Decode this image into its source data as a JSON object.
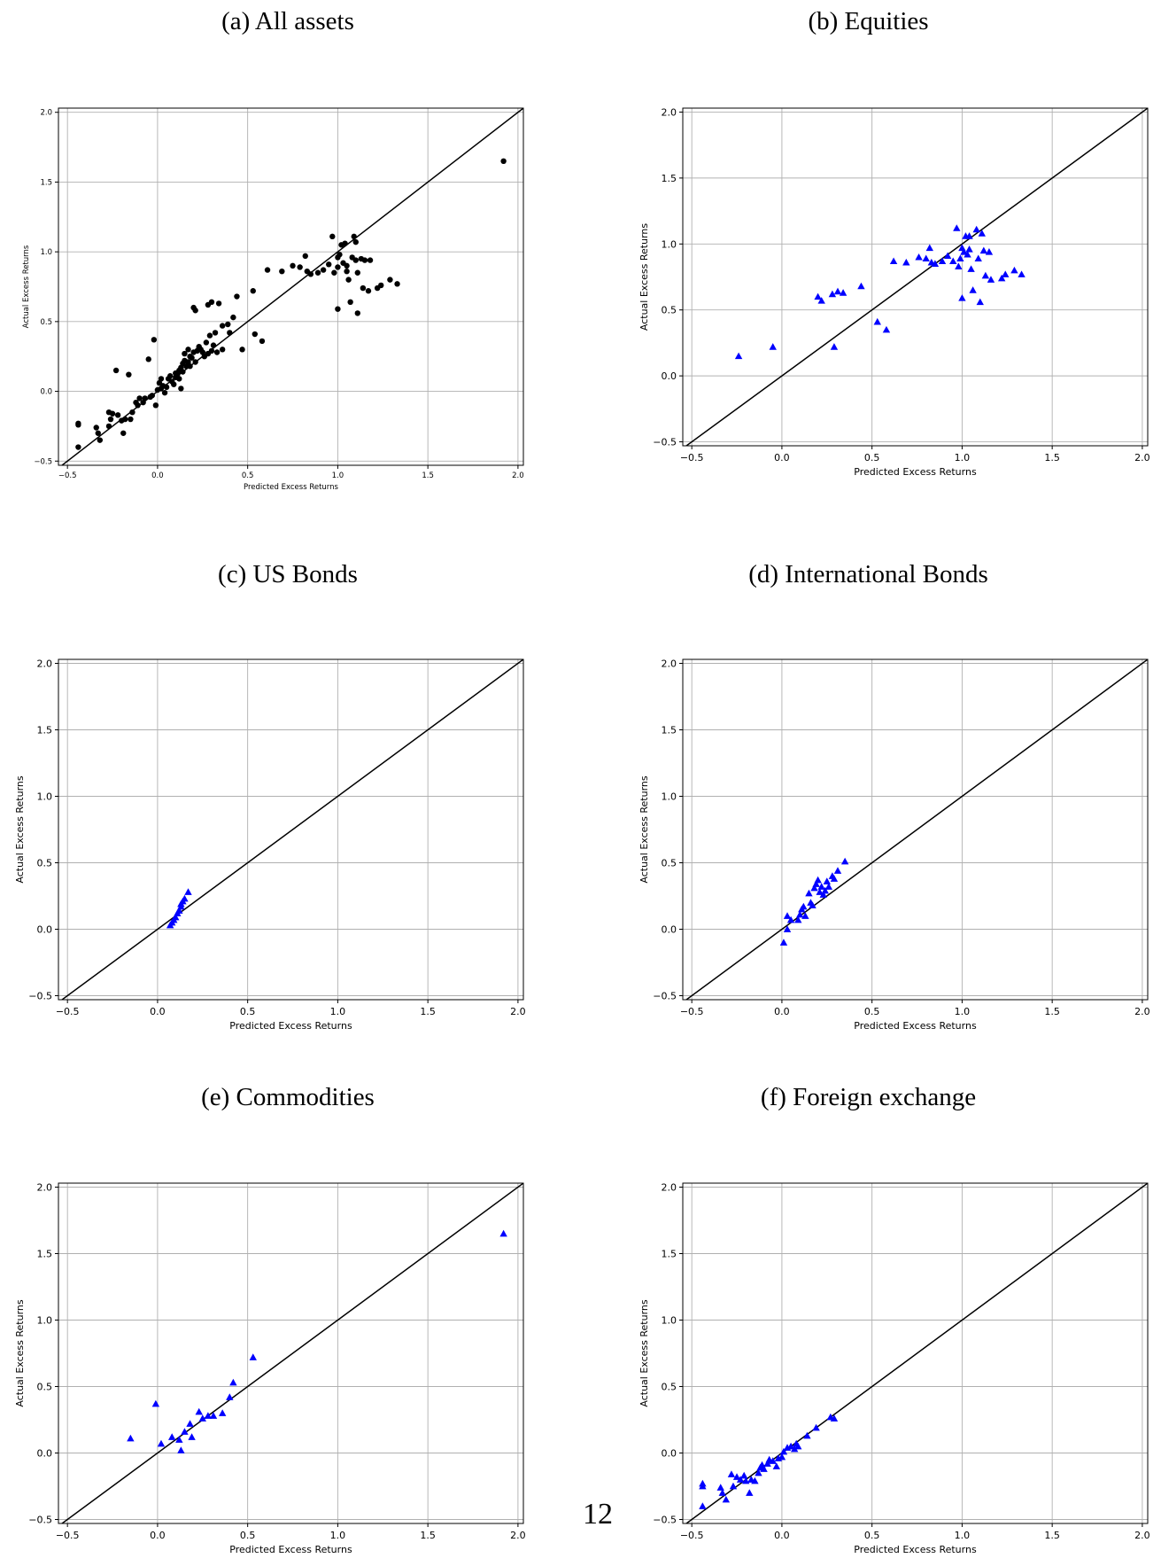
{
  "page": {
    "page_number": "12"
  },
  "colors": {
    "black_series": "#000000",
    "blue_series": "#0000ff",
    "grid": "#b0b0b0",
    "diagonal": "#000000"
  },
  "chart_data": [
    {
      "id": "a",
      "type": "scatter",
      "title": "(a) All assets",
      "marker": "circle",
      "color": "#000000",
      "xlabel": "Predicted Excess Returns",
      "ylabel": "Actual Excess Returns",
      "xlim": [
        -0.55,
        2.03
      ],
      "ylim": [
        -0.53,
        2.03
      ],
      "xticks": [
        "−0.5",
        "0.0",
        "0.5",
        "1.0",
        "1.5",
        "2.0"
      ],
      "xtick_values": [
        -0.5,
        0,
        0.5,
        1,
        1.5,
        2
      ],
      "yticks": [
        "−0.5",
        "0.0",
        "0.5",
        "1.0",
        "1.5",
        "2.0"
      ],
      "ytick_values": [
        -0.5,
        0,
        0.5,
        1,
        1.5,
        2
      ],
      "grid": true,
      "reference_line": "y = x",
      "points": [
        [
          -0.44,
          -0.23
        ],
        [
          -0.44,
          -0.24
        ],
        [
          -0.44,
          -0.4
        ],
        [
          -0.34,
          -0.26
        ],
        [
          -0.33,
          -0.3
        ],
        [
          -0.32,
          -0.35
        ],
        [
          -0.27,
          -0.15
        ],
        [
          -0.27,
          -0.25
        ],
        [
          -0.26,
          -0.2
        ],
        [
          -0.25,
          -0.16
        ],
        [
          -0.23,
          0.15
        ],
        [
          -0.22,
          -0.17
        ],
        [
          -0.2,
          -0.21
        ],
        [
          -0.19,
          -0.3
        ],
        [
          -0.18,
          -0.2
        ],
        [
          -0.16,
          0.12
        ],
        [
          -0.15,
          -0.2
        ],
        [
          -0.14,
          -0.15
        ],
        [
          -0.12,
          -0.08
        ],
        [
          -0.11,
          -0.1
        ],
        [
          -0.1,
          -0.05
        ],
        [
          -0.08,
          -0.08
        ],
        [
          -0.07,
          -0.05
        ],
        [
          -0.05,
          0.23
        ],
        [
          -0.04,
          -0.04
        ],
        [
          -0.03,
          -0.03
        ],
        [
          -0.02,
          0.37
        ],
        [
          -0.01,
          -0.1
        ],
        [
          0.0,
          0.01
        ],
        [
          0.01,
          0.06
        ],
        [
          0.02,
          0.02
        ],
        [
          0.02,
          0.09
        ],
        [
          0.03,
          0.04
        ],
        [
          0.04,
          -0.01
        ],
        [
          0.05,
          0.03
        ],
        [
          0.06,
          0.09
        ],
        [
          0.07,
          0.11
        ],
        [
          0.08,
          0.07
        ],
        [
          0.09,
          0.05
        ],
        [
          0.1,
          0.1
        ],
        [
          0.1,
          0.13
        ],
        [
          0.11,
          0.12
        ],
        [
          0.12,
          0.15
        ],
        [
          0.12,
          0.09
        ],
        [
          0.13,
          0.17
        ],
        [
          0.13,
          0.02
        ],
        [
          0.14,
          0.2
        ],
        [
          0.14,
          0.14
        ],
        [
          0.15,
          0.22
        ],
        [
          0.15,
          0.27
        ],
        [
          0.16,
          0.18
        ],
        [
          0.17,
          0.21
        ],
        [
          0.17,
          0.3
        ],
        [
          0.18,
          0.25
        ],
        [
          0.18,
          0.18
        ],
        [
          0.19,
          0.24
        ],
        [
          0.2,
          0.28
        ],
        [
          0.2,
          0.6
        ],
        [
          0.21,
          0.58
        ],
        [
          0.21,
          0.21
        ],
        [
          0.22,
          0.29
        ],
        [
          0.23,
          0.31
        ],
        [
          0.23,
          0.32
        ],
        [
          0.24,
          0.3
        ],
        [
          0.25,
          0.28
        ],
        [
          0.26,
          0.25
        ],
        [
          0.27,
          0.35
        ],
        [
          0.28,
          0.27
        ],
        [
          0.28,
          0.62
        ],
        [
          0.29,
          0.4
        ],
        [
          0.3,
          0.64
        ],
        [
          0.3,
          0.29
        ],
        [
          0.31,
          0.33
        ],
        [
          0.32,
          0.42
        ],
        [
          0.33,
          0.28
        ],
        [
          0.34,
          0.63
        ],
        [
          0.36,
          0.47
        ],
        [
          0.36,
          0.3
        ],
        [
          0.39,
          0.48
        ],
        [
          0.4,
          0.42
        ],
        [
          0.42,
          0.53
        ],
        [
          0.44,
          0.68
        ],
        [
          0.47,
          0.3
        ],
        [
          0.53,
          0.72
        ],
        [
          0.54,
          0.41
        ],
        [
          0.58,
          0.36
        ],
        [
          0.61,
          0.87
        ],
        [
          0.69,
          0.86
        ],
        [
          0.75,
          0.9
        ],
        [
          0.79,
          0.89
        ],
        [
          0.82,
          0.97
        ],
        [
          0.83,
          0.86
        ],
        [
          0.85,
          0.84
        ],
        [
          0.89,
          0.85
        ],
        [
          0.92,
          0.87
        ],
        [
          0.95,
          0.91
        ],
        [
          0.97,
          1.11
        ],
        [
          0.98,
          0.85
        ],
        [
          1.0,
          0.89
        ],
        [
          1.0,
          0.96
        ],
        [
          1.01,
          0.98
        ],
        [
          1.02,
          1.05
        ],
        [
          1.03,
          0.92
        ],
        [
          1.04,
          1.06
        ],
        [
          1.05,
          0.9
        ],
        [
          1.05,
          0.86
        ],
        [
          1.06,
          0.8
        ],
        [
          1.07,
          0.64
        ],
        [
          1.08,
          0.96
        ],
        [
          1.09,
          1.11
        ],
        [
          1.1,
          0.94
        ],
        [
          1.1,
          1.07
        ],
        [
          1.11,
          0.85
        ],
        [
          1.11,
          0.56
        ],
        [
          1.13,
          0.95
        ],
        [
          1.14,
          0.74
        ],
        [
          1.15,
          0.94
        ],
        [
          1.17,
          0.72
        ],
        [
          1.18,
          0.94
        ],
        [
          1.22,
          0.74
        ],
        [
          1.24,
          0.76
        ],
        [
          1.29,
          0.8
        ],
        [
          1.33,
          0.77
        ],
        [
          1.0,
          0.59
        ],
        [
          1.92,
          1.65
        ]
      ]
    },
    {
      "id": "b",
      "type": "scatter",
      "title": "(b) Equities",
      "marker": "triangle",
      "color": "#0000ff",
      "xlabel": "Predicted Excess Returns",
      "ylabel": "Actual Excess Returns",
      "xlim": [
        -0.55,
        2.03
      ],
      "ylim": [
        -0.53,
        2.03
      ],
      "xticks": [
        "−0.5",
        "0.0",
        "0.5",
        "1.0",
        "1.5",
        "2.0"
      ],
      "xtick_values": [
        -0.5,
        0,
        0.5,
        1,
        1.5,
        2
      ],
      "yticks": [
        "−0.5",
        "0.0",
        "0.5",
        "1.0",
        "1.5",
        "2.0"
      ],
      "ytick_values": [
        -0.5,
        0,
        0.5,
        1,
        1.5,
        2
      ],
      "grid": true,
      "reference_line": "y = x",
      "points": [
        [
          -0.24,
          0.15
        ],
        [
          -0.05,
          0.22
        ],
        [
          0.2,
          0.6
        ],
        [
          0.22,
          0.57
        ],
        [
          0.28,
          0.62
        ],
        [
          0.29,
          0.22
        ],
        [
          0.31,
          0.64
        ],
        [
          0.34,
          0.63
        ],
        [
          0.44,
          0.68
        ],
        [
          0.53,
          0.41
        ],
        [
          0.58,
          0.35
        ],
        [
          0.62,
          0.87
        ],
        [
          0.69,
          0.86
        ],
        [
          0.76,
          0.9
        ],
        [
          0.8,
          0.89
        ],
        [
          0.82,
          0.97
        ],
        [
          0.83,
          0.86
        ],
        [
          0.85,
          0.85
        ],
        [
          0.89,
          0.87
        ],
        [
          0.92,
          0.91
        ],
        [
          0.95,
          0.87
        ],
        [
          0.97,
          1.12
        ],
        [
          0.98,
          0.83
        ],
        [
          0.99,
          0.89
        ],
        [
          1.0,
          0.97
        ],
        [
          1.0,
          0.59
        ],
        [
          1.01,
          0.94
        ],
        [
          1.02,
          1.06
        ],
        [
          1.03,
          0.92
        ],
        [
          1.04,
          1.06
        ],
        [
          1.04,
          0.96
        ],
        [
          1.05,
          0.81
        ],
        [
          1.06,
          0.65
        ],
        [
          1.08,
          1.11
        ],
        [
          1.09,
          0.89
        ],
        [
          1.1,
          0.56
        ],
        [
          1.11,
          1.08
        ],
        [
          1.12,
          0.95
        ],
        [
          1.13,
          0.76
        ],
        [
          1.15,
          0.94
        ],
        [
          1.16,
          0.73
        ],
        [
          1.22,
          0.74
        ],
        [
          1.24,
          0.77
        ],
        [
          1.29,
          0.8
        ],
        [
          1.33,
          0.77
        ]
      ]
    },
    {
      "id": "c",
      "type": "scatter",
      "title": "(c) US Bonds",
      "marker": "triangle",
      "color": "#0000ff",
      "xlabel": "Predicted Excess Returns",
      "ylabel": "Actual Excess Returns",
      "xlim": [
        -0.55,
        2.03
      ],
      "ylim": [
        -0.53,
        2.03
      ],
      "xticks": [
        "−0.5",
        "0.0",
        "0.5",
        "1.0",
        "1.5",
        "2.0"
      ],
      "xtick_values": [
        -0.5,
        0,
        0.5,
        1,
        1.5,
        2
      ],
      "yticks": [
        "−0.5",
        "0.0",
        "0.5",
        "1.0",
        "1.5",
        "2.0"
      ],
      "ytick_values": [
        -0.5,
        0,
        0.5,
        1,
        1.5,
        2
      ],
      "grid": true,
      "reference_line": "y = x",
      "points": [
        [
          0.07,
          0.03
        ],
        [
          0.08,
          0.05
        ],
        [
          0.09,
          0.07
        ],
        [
          0.1,
          0.09
        ],
        [
          0.11,
          0.12
        ],
        [
          0.12,
          0.14
        ],
        [
          0.13,
          0.17
        ],
        [
          0.13,
          0.19
        ],
        [
          0.14,
          0.21
        ],
        [
          0.15,
          0.23
        ],
        [
          0.17,
          0.28
        ]
      ]
    },
    {
      "id": "d",
      "type": "scatter",
      "title": "(d) International Bonds",
      "marker": "triangle",
      "color": "#0000ff",
      "xlabel": "Predicted Excess Returns",
      "ylabel": "Actual Excess Returns",
      "xlim": [
        -0.55,
        2.03
      ],
      "ylim": [
        -0.53,
        2.03
      ],
      "xticks": [
        "−0.5",
        "0.0",
        "0.5",
        "1.0",
        "1.5",
        "2.0"
      ],
      "xtick_values": [
        -0.5,
        0,
        0.5,
        1,
        1.5,
        2
      ],
      "yticks": [
        "−0.5",
        "0.0",
        "0.5",
        "1.0",
        "1.5",
        "2.0"
      ],
      "ytick_values": [
        -0.5,
        0,
        0.5,
        1,
        1.5,
        2
      ],
      "grid": true,
      "reference_line": "y = x",
      "points": [
        [
          0.01,
          -0.1
        ],
        [
          0.03,
          0.0
        ],
        [
          0.03,
          0.1
        ],
        [
          0.05,
          0.07
        ],
        [
          0.09,
          0.07
        ],
        [
          0.1,
          0.11
        ],
        [
          0.11,
          0.15
        ],
        [
          0.12,
          0.17
        ],
        [
          0.13,
          0.1
        ],
        [
          0.15,
          0.27
        ],
        [
          0.16,
          0.2
        ],
        [
          0.17,
          0.18
        ],
        [
          0.18,
          0.31
        ],
        [
          0.19,
          0.34
        ],
        [
          0.2,
          0.37
        ],
        [
          0.21,
          0.28
        ],
        [
          0.22,
          0.32
        ],
        [
          0.23,
          0.26
        ],
        [
          0.24,
          0.29
        ],
        [
          0.25,
          0.36
        ],
        [
          0.26,
          0.32
        ],
        [
          0.28,
          0.4
        ],
        [
          0.29,
          0.38
        ],
        [
          0.31,
          0.44
        ],
        [
          0.35,
          0.51
        ]
      ]
    },
    {
      "id": "e",
      "type": "scatter",
      "title": "(e) Commodities",
      "marker": "triangle",
      "color": "#0000ff",
      "xlabel": "Predicted Excess Returns",
      "ylabel": "Actual Excess Returns",
      "xlim": [
        -0.55,
        2.03
      ],
      "ylim": [
        -0.53,
        2.03
      ],
      "xticks": [
        "−0.5",
        "0.0",
        "0.5",
        "1.0",
        "1.5",
        "2.0"
      ],
      "xtick_values": [
        -0.5,
        0,
        0.5,
        1,
        1.5,
        2
      ],
      "yticks": [
        "−0.5",
        "0.0",
        "0.5",
        "1.0",
        "1.5",
        "2.0"
      ],
      "ytick_values": [
        -0.5,
        0,
        0.5,
        1,
        1.5,
        2
      ],
      "grid": true,
      "reference_line": "y = x",
      "points": [
        [
          -0.15,
          0.11
        ],
        [
          -0.01,
          0.37
        ],
        [
          0.02,
          0.07
        ],
        [
          0.08,
          0.12
        ],
        [
          0.12,
          0.1
        ],
        [
          0.13,
          0.02
        ],
        [
          0.15,
          0.16
        ],
        [
          0.18,
          0.22
        ],
        [
          0.19,
          0.12
        ],
        [
          0.23,
          0.31
        ],
        [
          0.25,
          0.26
        ],
        [
          0.28,
          0.28
        ],
        [
          0.31,
          0.28
        ],
        [
          0.36,
          0.3
        ],
        [
          0.4,
          0.42
        ],
        [
          0.42,
          0.53
        ],
        [
          0.53,
          0.72
        ],
        [
          1.92,
          1.65
        ]
      ]
    },
    {
      "id": "f",
      "type": "scatter",
      "title": "(f) Foreign exchange",
      "marker": "triangle",
      "color": "#0000ff",
      "xlabel": "Predicted Excess Returns",
      "ylabel": "Actual Excess Returns",
      "xlim": [
        -0.55,
        2.03
      ],
      "ylim": [
        -0.53,
        2.03
      ],
      "xticks": [
        "−0.5",
        "0.0",
        "0.5",
        "1.0",
        "1.5",
        "2.0"
      ],
      "xtick_values": [
        -0.5,
        0,
        0.5,
        1,
        1.5,
        2
      ],
      "yticks": [
        "−0.5",
        "0.0",
        "0.5",
        "1.0",
        "1.5",
        "2.0"
      ],
      "ytick_values": [
        -0.5,
        0,
        0.5,
        1,
        1.5,
        2
      ],
      "grid": true,
      "reference_line": "y = x",
      "points": [
        [
          -0.44,
          -0.23
        ],
        [
          -0.44,
          -0.25
        ],
        [
          -0.44,
          -0.4
        ],
        [
          -0.34,
          -0.26
        ],
        [
          -0.33,
          -0.3
        ],
        [
          -0.31,
          -0.35
        ],
        [
          -0.28,
          -0.16
        ],
        [
          -0.27,
          -0.25
        ],
        [
          -0.25,
          -0.18
        ],
        [
          -0.23,
          -0.2
        ],
        [
          -0.21,
          -0.17
        ],
        [
          -0.2,
          -0.21
        ],
        [
          -0.18,
          -0.3
        ],
        [
          -0.17,
          -0.2
        ],
        [
          -0.15,
          -0.21
        ],
        [
          -0.13,
          -0.15
        ],
        [
          -0.12,
          -0.11
        ],
        [
          -0.11,
          -0.09
        ],
        [
          -0.1,
          -0.12
        ],
        [
          -0.08,
          -0.08
        ],
        [
          -0.07,
          -0.05
        ],
        [
          -0.05,
          -0.06
        ],
        [
          -0.03,
          -0.1
        ],
        [
          -0.02,
          -0.04
        ],
        [
          0.0,
          -0.03
        ],
        [
          0.01,
          0.01
        ],
        [
          0.03,
          0.04
        ],
        [
          0.05,
          0.05
        ],
        [
          0.07,
          0.03
        ],
        [
          0.08,
          0.07
        ],
        [
          0.09,
          0.05
        ],
        [
          0.14,
          0.13
        ],
        [
          0.19,
          0.19
        ],
        [
          0.27,
          0.27
        ],
        [
          0.29,
          0.26
        ]
      ]
    }
  ]
}
